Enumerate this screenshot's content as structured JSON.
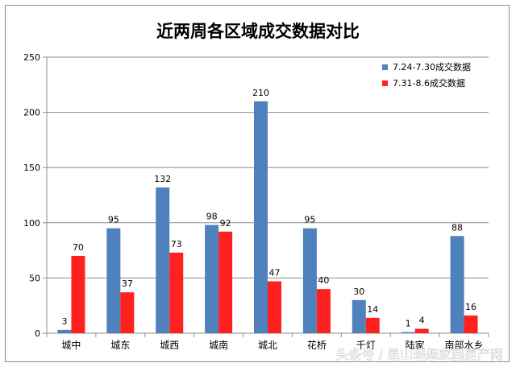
{
  "chart_data": {
    "type": "bar",
    "title": "近两周各区域成交数据对比",
    "categories": [
      "城中",
      "城东",
      "城西",
      "城南",
      "城北",
      "花桥",
      "千灯",
      "陆家",
      "南部水乡"
    ],
    "series": [
      {
        "name": "7.24-7.30成交数据",
        "values": [
          3,
          95,
          132,
          98,
          210,
          95,
          30,
          1,
          88
        ],
        "color": "#4f81bd"
      },
      {
        "name": "7.31-8.6成交数据",
        "values": [
          70,
          37,
          73,
          92,
          47,
          40,
          14,
          4,
          16
        ],
        "color": "#ff2020"
      }
    ],
    "ylim": [
      0,
      250
    ],
    "yticks": [
      0,
      50,
      100,
      150,
      200,
      250
    ],
    "grid": true,
    "legend_position": "top-right",
    "data_labels": true
  },
  "watermark": "头条号 / 昆山理想家园房产网"
}
